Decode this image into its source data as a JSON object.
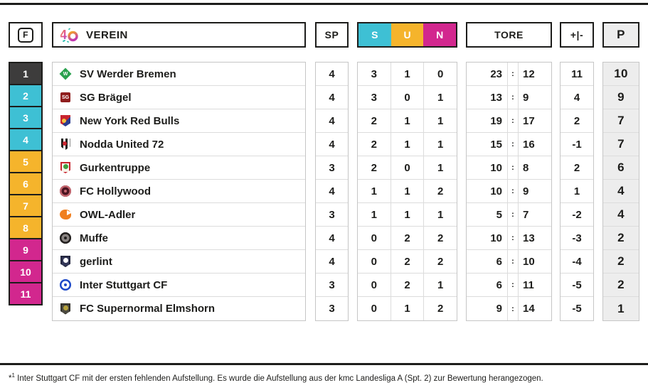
{
  "header": {
    "position_label": "F",
    "verein_label": "VEREIN",
    "sp_label": "SP",
    "s_label": "S",
    "u_label": "U",
    "n_label": "N",
    "tore_label": "TORE",
    "diff_label": "+|-",
    "points_label": "P"
  },
  "colors": {
    "dark": "#3d3c3c",
    "cyan": "#3ec0d4",
    "yellow": "#f5b42c",
    "magenta": "#d2278e",
    "points_bg": "#ededed",
    "line_black": "#1d1d1b"
  },
  "rows": [
    {
      "pos": "1",
      "pos_color": "dark",
      "club": "SV Werder Bremen",
      "logo": {
        "shape": "diamond",
        "bg": "#2aa14e",
        "fg": "#ffffff",
        "label": "W"
      },
      "sp": "4",
      "s": "3",
      "u": "1",
      "n": "0",
      "goals_for": "23",
      "goals_against": "12",
      "diff": "11",
      "points": "10"
    },
    {
      "pos": "2",
      "pos_color": "cyan",
      "club": "SG Brägel",
      "logo": {
        "shape": "square",
        "bg": "#8f1d1d",
        "fg": "#ffffff",
        "label": "SG"
      },
      "sp": "4",
      "s": "3",
      "u": "0",
      "n": "1",
      "goals_for": "13",
      "goals_against": "9",
      "diff": "4",
      "points": "9"
    },
    {
      "pos": "3",
      "pos_color": "cyan",
      "club": "New York Red Bulls",
      "logo": {
        "shape": "crest",
        "bg": "#c8242e",
        "fg": "#f2c23e",
        "label": ""
      },
      "sp": "4",
      "s": "2",
      "u": "1",
      "n": "1",
      "goals_for": "19",
      "goals_against": "17",
      "diff": "2",
      "points": "7"
    },
    {
      "pos": "4",
      "pos_color": "cyan",
      "club": "Nodda United 72",
      "logo": {
        "shape": "stripes",
        "bg": "#1d1d1b",
        "fg": "#c8242e",
        "label": ""
      },
      "sp": "4",
      "s": "2",
      "u": "1",
      "n": "1",
      "goals_for": "15",
      "goals_against": "16",
      "diff": "-1",
      "points": "7"
    },
    {
      "pos": "5",
      "pos_color": "yellow",
      "club": "Gurkentruppe",
      "logo": {
        "shape": "shield",
        "bg": "#f7f3ea",
        "fg": "#3f9e3f",
        "border": "#c8242e",
        "label": ""
      },
      "sp": "3",
      "s": "2",
      "u": "0",
      "n": "1",
      "goals_for": "10",
      "goals_against": "8",
      "diff": "2",
      "points": "6"
    },
    {
      "pos": "6",
      "pos_color": "yellow",
      "club": "FC Hollywood",
      "logo": {
        "shape": "circle",
        "bg": "#c4656e",
        "fg": "#4a1420",
        "label": ""
      },
      "sp": "4",
      "s": "1",
      "u": "1",
      "n": "2",
      "goals_for": "10",
      "goals_against": "9",
      "diff": "1",
      "points": "4"
    },
    {
      "pos": "7",
      "pos_color": "yellow",
      "club": "OWL-Adler",
      "logo": {
        "shape": "eagle",
        "bg": "#f07f1f",
        "fg": "#ffffff",
        "label": ""
      },
      "sp": "3",
      "s": "1",
      "u": "1",
      "n": "1",
      "goals_for": "5",
      "goals_against": "7",
      "diff": "-2",
      "points": "4"
    },
    {
      "pos": "8",
      "pos_color": "yellow",
      "club": "Muffe",
      "logo": {
        "shape": "circle",
        "bg": "#23201f",
        "fg": "#8a8482",
        "label": ""
      },
      "sp": "4",
      "s": "0",
      "u": "2",
      "n": "2",
      "goals_for": "10",
      "goals_against": "13",
      "diff": "-3",
      "points": "2"
    },
    {
      "pos": "9",
      "pos_color": "magenta",
      "club": "gerlint",
      "logo": {
        "shape": "shield",
        "bg": "#323657",
        "fg": "#ffffff",
        "border": "#23263d",
        "label": ""
      },
      "sp": "4",
      "s": "0",
      "u": "2",
      "n": "2",
      "goals_for": "6",
      "goals_against": "10",
      "diff": "-4",
      "points": "2"
    },
    {
      "pos": "10",
      "pos_color": "magenta",
      "club": "Inter Stuttgart CF",
      "logo": {
        "shape": "circle",
        "bg": "#1d49c8",
        "fg": "#ffffff",
        "label": ""
      },
      "sp": "3",
      "s": "0",
      "u": "2",
      "n": "1",
      "goals_for": "6",
      "goals_against": "11",
      "diff": "-5",
      "points": "2"
    },
    {
      "pos": "11",
      "pos_color": "magenta",
      "club": "FC Supernormal Elmshorn",
      "logo": {
        "shape": "shield",
        "bg": "#4c4a40",
        "fg": "#b5a23c",
        "border": "#33312a",
        "label": ""
      },
      "sp": "3",
      "s": "0",
      "u": "1",
      "n": "2",
      "goals_for": "9",
      "goals_against": "14",
      "diff": "-5",
      "points": "1"
    }
  ],
  "footnote": {
    "marker": "*",
    "marker_sup": "1",
    "text": " Inter Stuttgart CF mit der ersten fehlenden Aufstellung. Es wurde die Aufstellung aus der kmc Landesliga A (Spt. 2) zur Bewertung herangezogen."
  },
  "chart_data": {
    "type": "table",
    "title": "League standings table",
    "columns": [
      "F",
      "Verein",
      "SP",
      "S",
      "U",
      "N",
      "Tore",
      "+|-",
      "P"
    ],
    "rows": [
      [
        1,
        "SV Werder Bremen",
        4,
        3,
        1,
        0,
        "23:12",
        11,
        10
      ],
      [
        2,
        "SG Brägel",
        4,
        3,
        0,
        1,
        "13:9",
        4,
        9
      ],
      [
        3,
        "New York Red Bulls",
        4,
        2,
        1,
        1,
        "19:17",
        2,
        7
      ],
      [
        4,
        "Nodda United 72",
        4,
        2,
        1,
        1,
        "15:16",
        -1,
        7
      ],
      [
        5,
        "Gurkentruppe",
        3,
        2,
        0,
        1,
        "10:8",
        2,
        6
      ],
      [
        6,
        "FC Hollywood",
        4,
        1,
        1,
        2,
        "10:9",
        1,
        4
      ],
      [
        7,
        "OWL-Adler",
        3,
        1,
        1,
        1,
        "5:7",
        -2,
        4
      ],
      [
        8,
        "Muffe",
        4,
        0,
        2,
        2,
        "10:13",
        -3,
        2
      ],
      [
        9,
        "gerlint",
        4,
        0,
        2,
        2,
        "6:10",
        -4,
        2
      ],
      [
        10,
        "Inter Stuttgart CF",
        3,
        0,
        2,
        1,
        "6:11",
        -5,
        2
      ],
      [
        11,
        "FC Supernormal Elmshorn",
        3,
        0,
        1,
        2,
        "9:14",
        -5,
        1
      ]
    ]
  }
}
